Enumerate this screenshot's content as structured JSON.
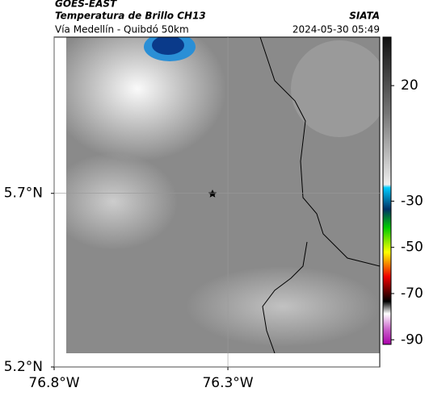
{
  "header": {
    "title": "GOES-EAST",
    "subtitle": "Temperatura de Brillo CH13",
    "source": "SIATA",
    "route": "Vía Medellín - Quibdó 50km",
    "datetime": "2024-05-30 05:49"
  },
  "map": {
    "xlim": [
      -76.8,
      -75.863
    ],
    "ylim": [
      5.2,
      6.15
    ],
    "xticks": [
      {
        "value": -76.8,
        "label": "76.8°W"
      },
      {
        "value": -76.3,
        "label": "76.3°W"
      }
    ],
    "yticks": [
      {
        "value": 5.7,
        "label": "5.7°N"
      },
      {
        "value": 5.2,
        "label": "5.2°N"
      }
    ]
  },
  "colorbar": {
    "lim": [
      41,
      -92
    ],
    "ticks": [
      20,
      -30,
      -50,
      -70,
      -90
    ]
  }
}
